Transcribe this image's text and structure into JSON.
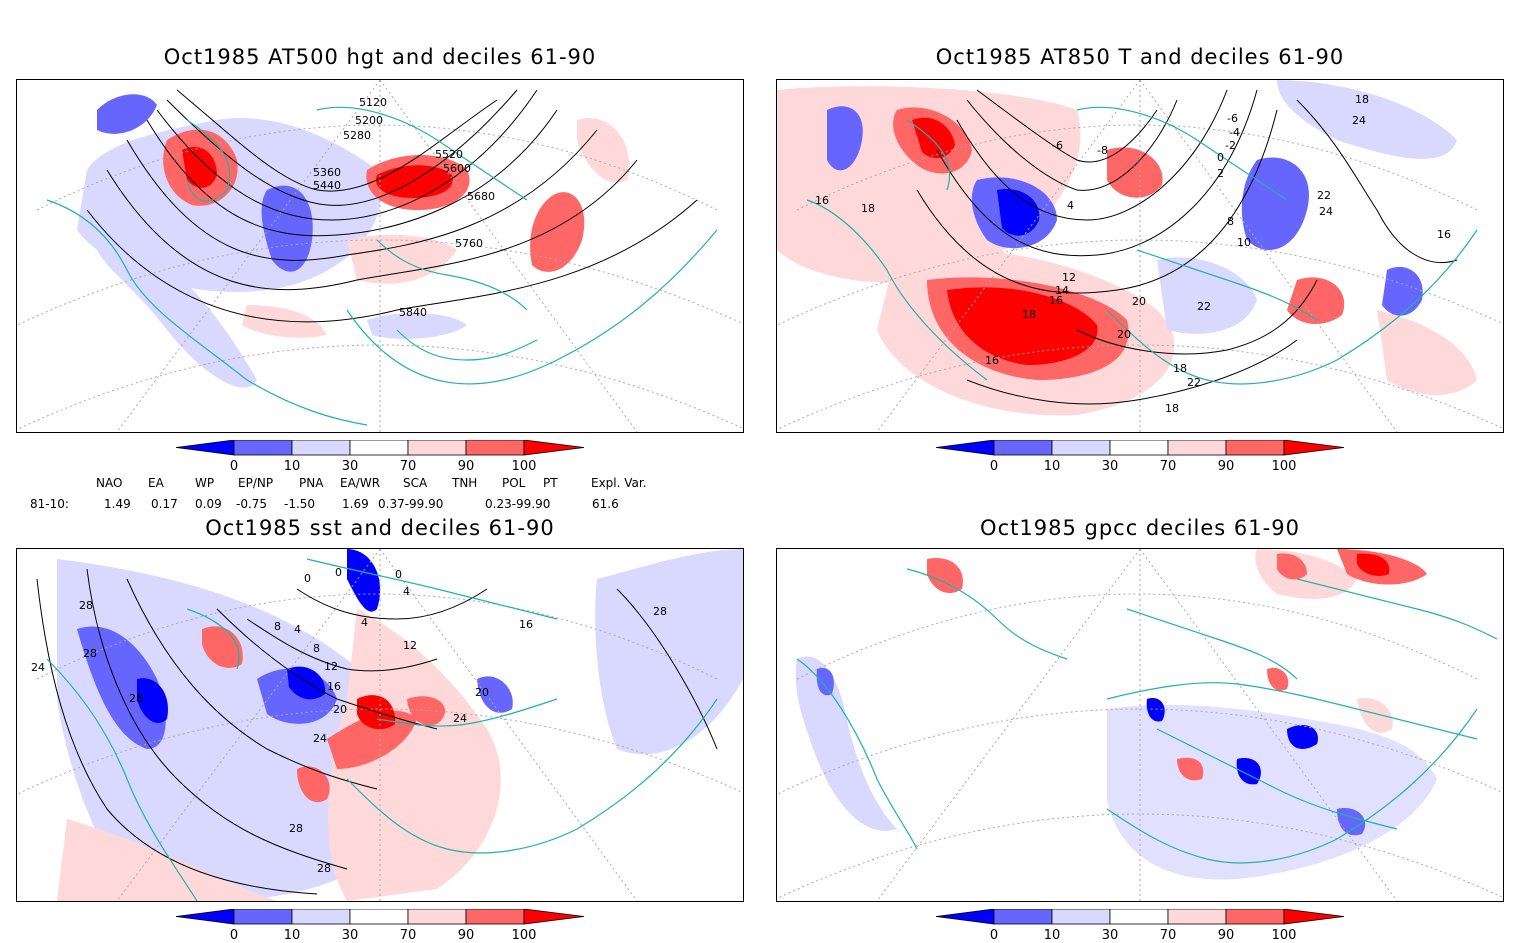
{
  "panels": [
    {
      "title": "Oct1985 AT500 hgt and deciles 61-90",
      "contour_labels": [
        "5120",
        "5200",
        "5280",
        "5360",
        "5440",
        "5520",
        "5600",
        "5680",
        "5760",
        "5840"
      ]
    },
    {
      "title": "Oct1985 AT850 T and deciles 61-90",
      "contour_labels": [
        "-6",
        "-4",
        "-2",
        "0",
        "2",
        "4",
        "-8",
        "-6",
        "8",
        "10",
        "12",
        "14",
        "16",
        "18",
        "20",
        "22",
        "24",
        "16",
        "18",
        "16",
        "18",
        "20",
        "22",
        "18",
        "16",
        "18",
        "22",
        "24"
      ]
    },
    {
      "title": "Oct1985 sst and deciles 61-90",
      "contour_labels": [
        "0",
        "0",
        "0",
        "4",
        "8",
        "4",
        "8",
        "12",
        "16",
        "20",
        "24",
        "28",
        "28",
        "28",
        "28",
        "24",
        "28",
        "16",
        "20",
        "24",
        "12",
        "4"
      ]
    },
    {
      "title": "Oct1985 gpcc deciles 61-90",
      "contour_labels": []
    }
  ],
  "colorbar": {
    "ticks": [
      "0",
      "10",
      "30",
      "70",
      "90",
      "100"
    ],
    "colors": [
      "#0000ff",
      "#6666ff",
      "#d9d9ff",
      "#ffffff",
      "#ffd9d9",
      "#ff6666",
      "#ff0000"
    ]
  },
  "indices": {
    "headers": [
      "NAO",
      "EA",
      "WP",
      "EP/NP",
      "PNA",
      "EA/WR",
      "SCA",
      "TNH",
      "POL",
      "PT",
      "Expl. Var."
    ],
    "row_label": "81-10:",
    "values": [
      "1.49",
      "0.17",
      "0.09",
      "-0.75",
      "-1.50",
      "1.69",
      "0.37-99.90",
      "0.23-99.90",
      "61.6"
    ]
  },
  "colors": {
    "outline": "#20b2aa",
    "strong_pos": "#ff0000",
    "pos": "#ff6666",
    "weak_pos": "#ffd9d9",
    "strong_neg": "#0000ff",
    "neg": "#6666ff",
    "weak_neg": "#d9d9ff"
  }
}
